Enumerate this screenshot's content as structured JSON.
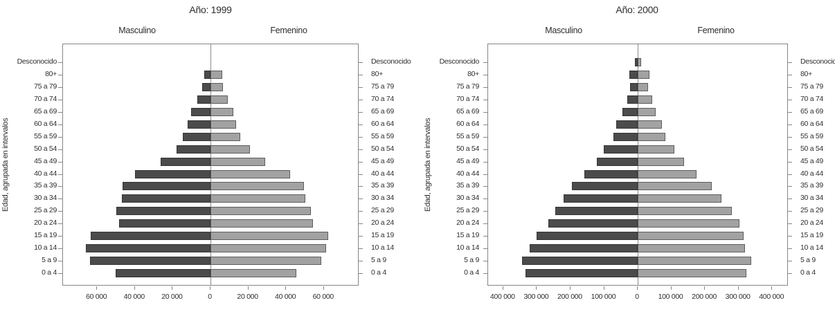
{
  "figure": {
    "background": "#ffffff",
    "colors": {
      "male_fill": "#4b4b4b",
      "male_border": "#353535",
      "female_fill": "#a2a2a2",
      "female_border": "#5e5e5e",
      "frame": "#868686",
      "text": "#2e2e2e"
    }
  },
  "chart_data": [
    {
      "type": "bar",
      "subtype": "population-pyramid",
      "title": "Año: 1999",
      "ylabel": "Edad, agrupada en intervalos",
      "left_header": "Masculino",
      "right_header": "Femenino",
      "categories": [
        "Desconocido",
        "80+",
        "75 a 79",
        "70 a 74",
        "65 a 69",
        "60 a 64",
        "55 a 59",
        "50 a 54",
        "45 a 49",
        "40 a 44",
        "35 a 39",
        "30 a 34",
        "25 a 29",
        "20 a 24",
        "15 a 19",
        "10 a 14",
        "5 a 9",
        "0 a 4"
      ],
      "series": [
        {
          "name": "Masculino",
          "values": [
            0,
            3400,
            4400,
            7100,
            10300,
            12000,
            14600,
            17800,
            26300,
            40000,
            46700,
            46900,
            50000,
            48500,
            63400,
            65800,
            63700,
            50100
          ]
        },
        {
          "name": "Femenino",
          "values": [
            0,
            6300,
            6600,
            9300,
            12100,
            13500,
            15600,
            21000,
            29000,
            42000,
            49400,
            50200,
            52900,
            54100,
            62400,
            61200,
            58700,
            45300
          ]
        }
      ],
      "xlim": 78000,
      "x_tick_values": [
        -60000,
        -40000,
        -20000,
        0,
        20000,
        40000,
        60000
      ],
      "x_tick_labels": [
        "60 000",
        "40 000",
        "20 000",
        "0",
        "20 000",
        "40 000",
        "60 000"
      ],
      "grid": false,
      "age_labels_both_sides": true
    },
    {
      "type": "bar",
      "subtype": "population-pyramid",
      "title": "Año: 2000",
      "ylabel": "Edad, agrupada en intervalos",
      "left_header": "Masculino",
      "right_header": "Femenino",
      "categories": [
        "Desconocido",
        "80+",
        "75 a 79",
        "70 a 74",
        "65 a 69",
        "60 a 64",
        "55 a 59",
        "50 a 54",
        "45 a 49",
        "40 a 44",
        "35 a 39",
        "30 a 34",
        "25 a 29",
        "20 a 24",
        "15 a 19",
        "10 a 14",
        "5 a 9",
        "0 a 4"
      ],
      "series": [
        {
          "name": "Masculino",
          "values": [
            8000,
            24000,
            22000,
            31000,
            46000,
            63000,
            73000,
            101000,
            122000,
            159000,
            195000,
            220000,
            246000,
            265000,
            301000,
            322000,
            345000,
            333000
          ]
        },
        {
          "name": "Femenino",
          "values": [
            11000,
            35000,
            30000,
            43000,
            54000,
            72000,
            83000,
            110000,
            137000,
            174000,
            220000,
            249000,
            280000,
            302000,
            316000,
            320000,
            337000,
            323000
          ]
        }
      ],
      "xlim": 445000,
      "x_tick_values": [
        -400000,
        -300000,
        -200000,
        -100000,
        0,
        100000,
        200000,
        300000,
        400000
      ],
      "x_tick_labels": [
        "400 000",
        "300 000",
        "200 000",
        "100 000",
        "0",
        "100 000",
        "200 000",
        "300 000",
        "400 000"
      ],
      "grid": false,
      "age_labels_both_sides": true
    }
  ]
}
